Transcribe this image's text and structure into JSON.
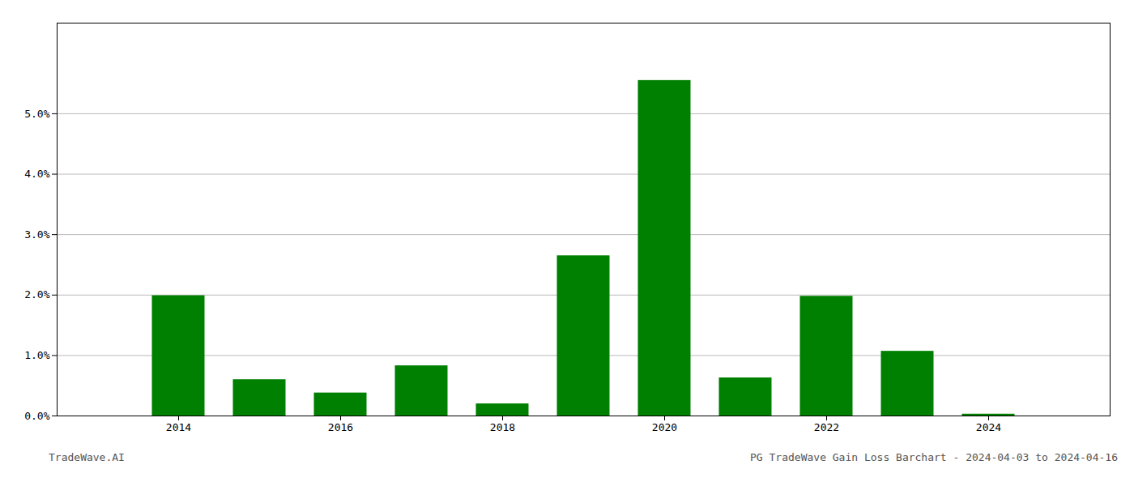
{
  "chart_data": {
    "type": "bar",
    "x": [
      2014,
      2015,
      2016,
      2017,
      2018,
      2019,
      2020,
      2021,
      2022,
      2023,
      2024
    ],
    "values": [
      0.0199,
      0.006,
      0.0038,
      0.0083,
      0.002,
      0.0265,
      0.0555,
      0.0063,
      0.0198,
      0.0107,
      0.0003
    ],
    "color": "#008000",
    "xlim": [
      2012.5,
      2025.5
    ],
    "xticks": [
      2014,
      2016,
      2018,
      2020,
      2022,
      2024
    ],
    "ylim": [
      0,
      0.065
    ],
    "yticks": [
      {
        "value": 0.0,
        "label": "0.0%"
      },
      {
        "value": 0.01,
        "label": "1.0%"
      },
      {
        "value": 0.02,
        "label": "2.0%"
      },
      {
        "value": 0.03,
        "label": "3.0%"
      },
      {
        "value": 0.04,
        "label": "4.0%"
      },
      {
        "value": 0.05,
        "label": "5.0%"
      }
    ],
    "grid": true,
    "annotations": [
      "TradeWave.AI",
      "PG TradeWave Gain Loss Barchart - 2024-04-03 to 2024-04-16"
    ]
  }
}
